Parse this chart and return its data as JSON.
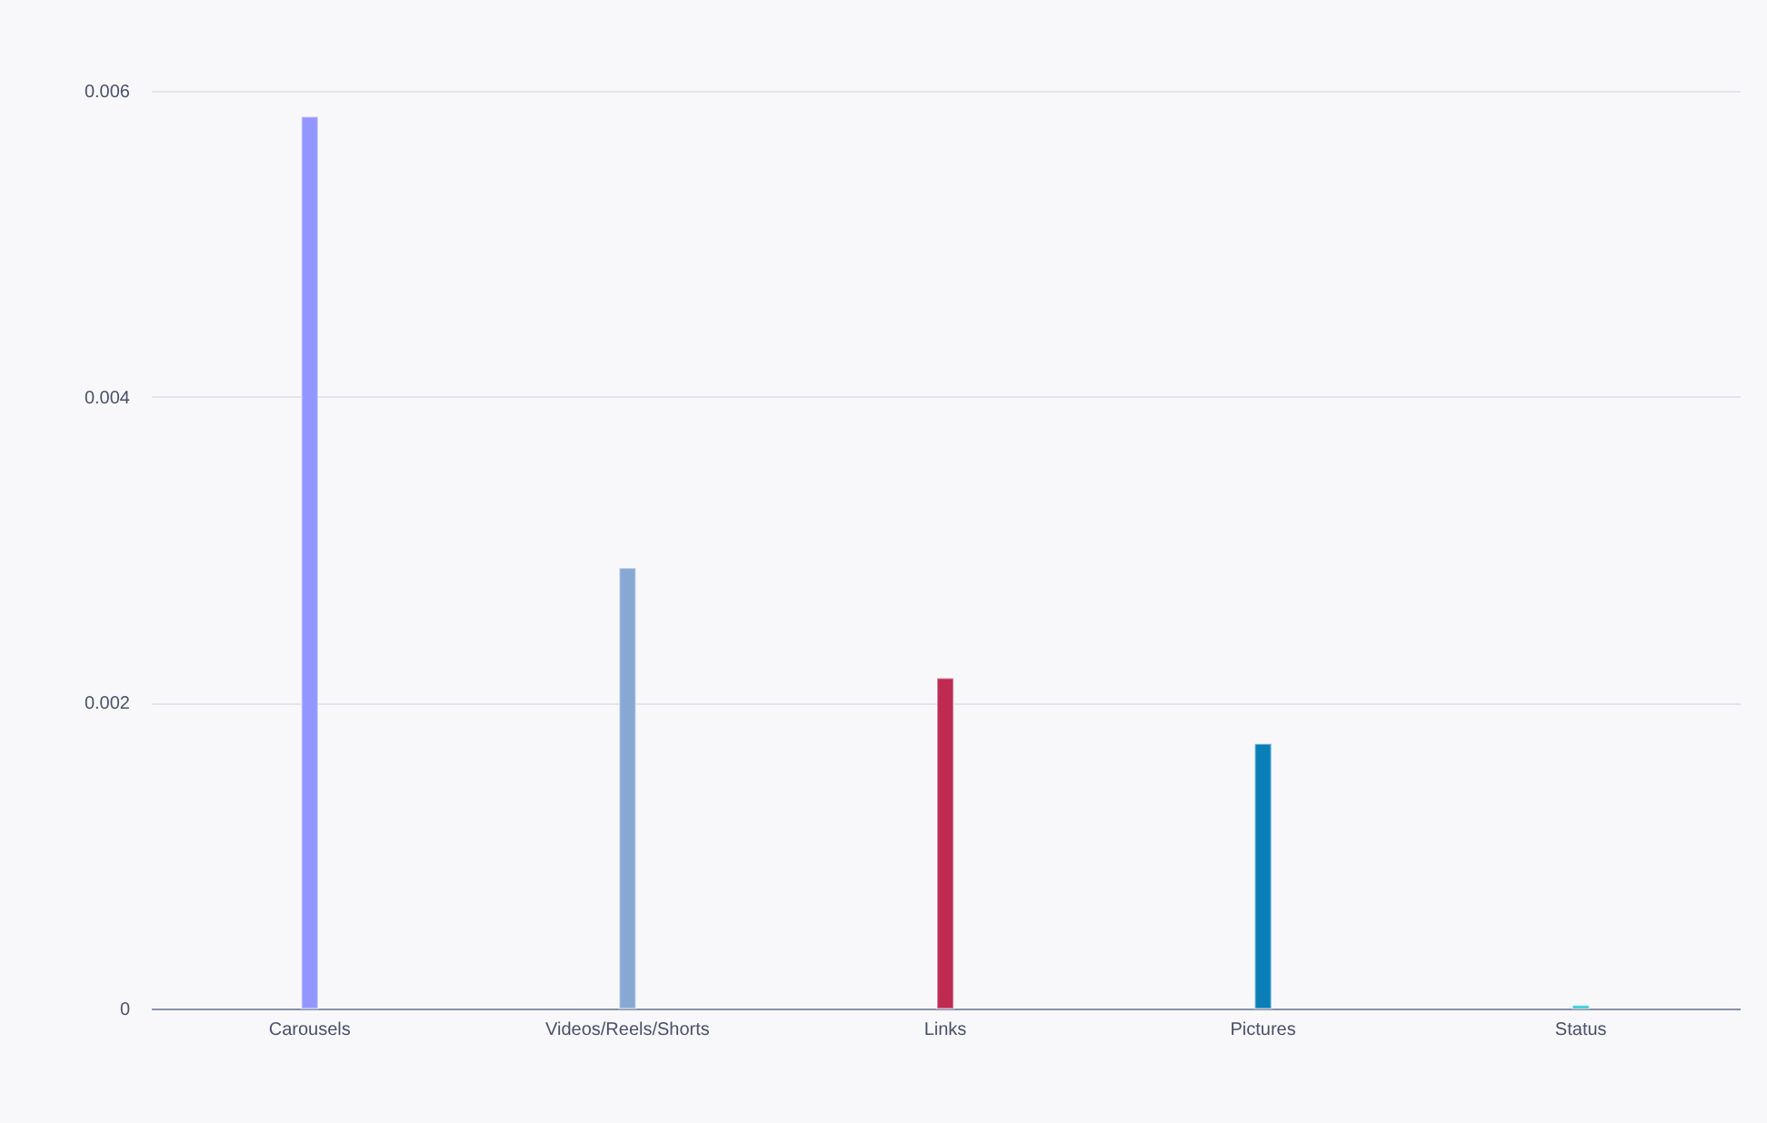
{
  "chart_data": {
    "type": "bar",
    "categories": [
      "Carousels",
      "Videos/Reels/Shorts",
      "Links",
      "Pictures",
      "Status"
    ],
    "values": [
      0.00583,
      0.00288,
      0.00216,
      0.00173,
      2e-05
    ],
    "colors": [
      "#9496ff",
      "#88a8d4",
      "#bf2a52",
      "#0a7fb7",
      "#1ec8d8"
    ],
    "ylim": [
      0,
      0.006
    ],
    "yticks": [
      0,
      0.002,
      0.004,
      0.006
    ],
    "grid": "y",
    "legend": false
  }
}
